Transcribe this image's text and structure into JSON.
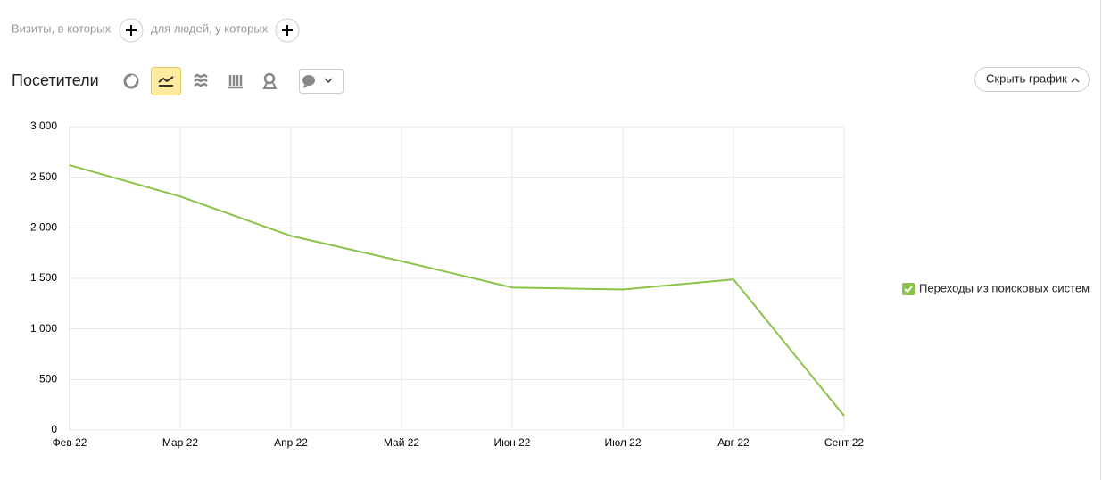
{
  "filters": {
    "visits": "Визиты, в которых",
    "people": "для людей, у которых"
  },
  "report": {
    "title": "Посетители",
    "hide_chart": "Скрыть график"
  },
  "chart_data": {
    "type": "line",
    "categories": [
      "Фев 22",
      "Мар 22",
      "Апр 22",
      "Май 22",
      "Июн 22",
      "Июл 22",
      "Авг 22",
      "Сент 22"
    ],
    "series": [
      {
        "name": "Переходы из поисковых систем",
        "color": "#8bc34a",
        "values": [
          2620,
          2310,
          1920,
          1670,
          1410,
          1390,
          1490,
          140
        ]
      }
    ],
    "ylim": [
      0,
      3000
    ],
    "yticks": [
      0,
      500,
      {
        "value": 1000,
        "label": "1 000"
      },
      {
        "value": 1500,
        "label": "1 500"
      },
      {
        "value": 2000,
        "label": "2 000"
      },
      {
        "value": 2500,
        "label": "2 500"
      },
      {
        "value": 3000,
        "label": "3 000"
      }
    ],
    "grid": true,
    "legend": "right"
  }
}
